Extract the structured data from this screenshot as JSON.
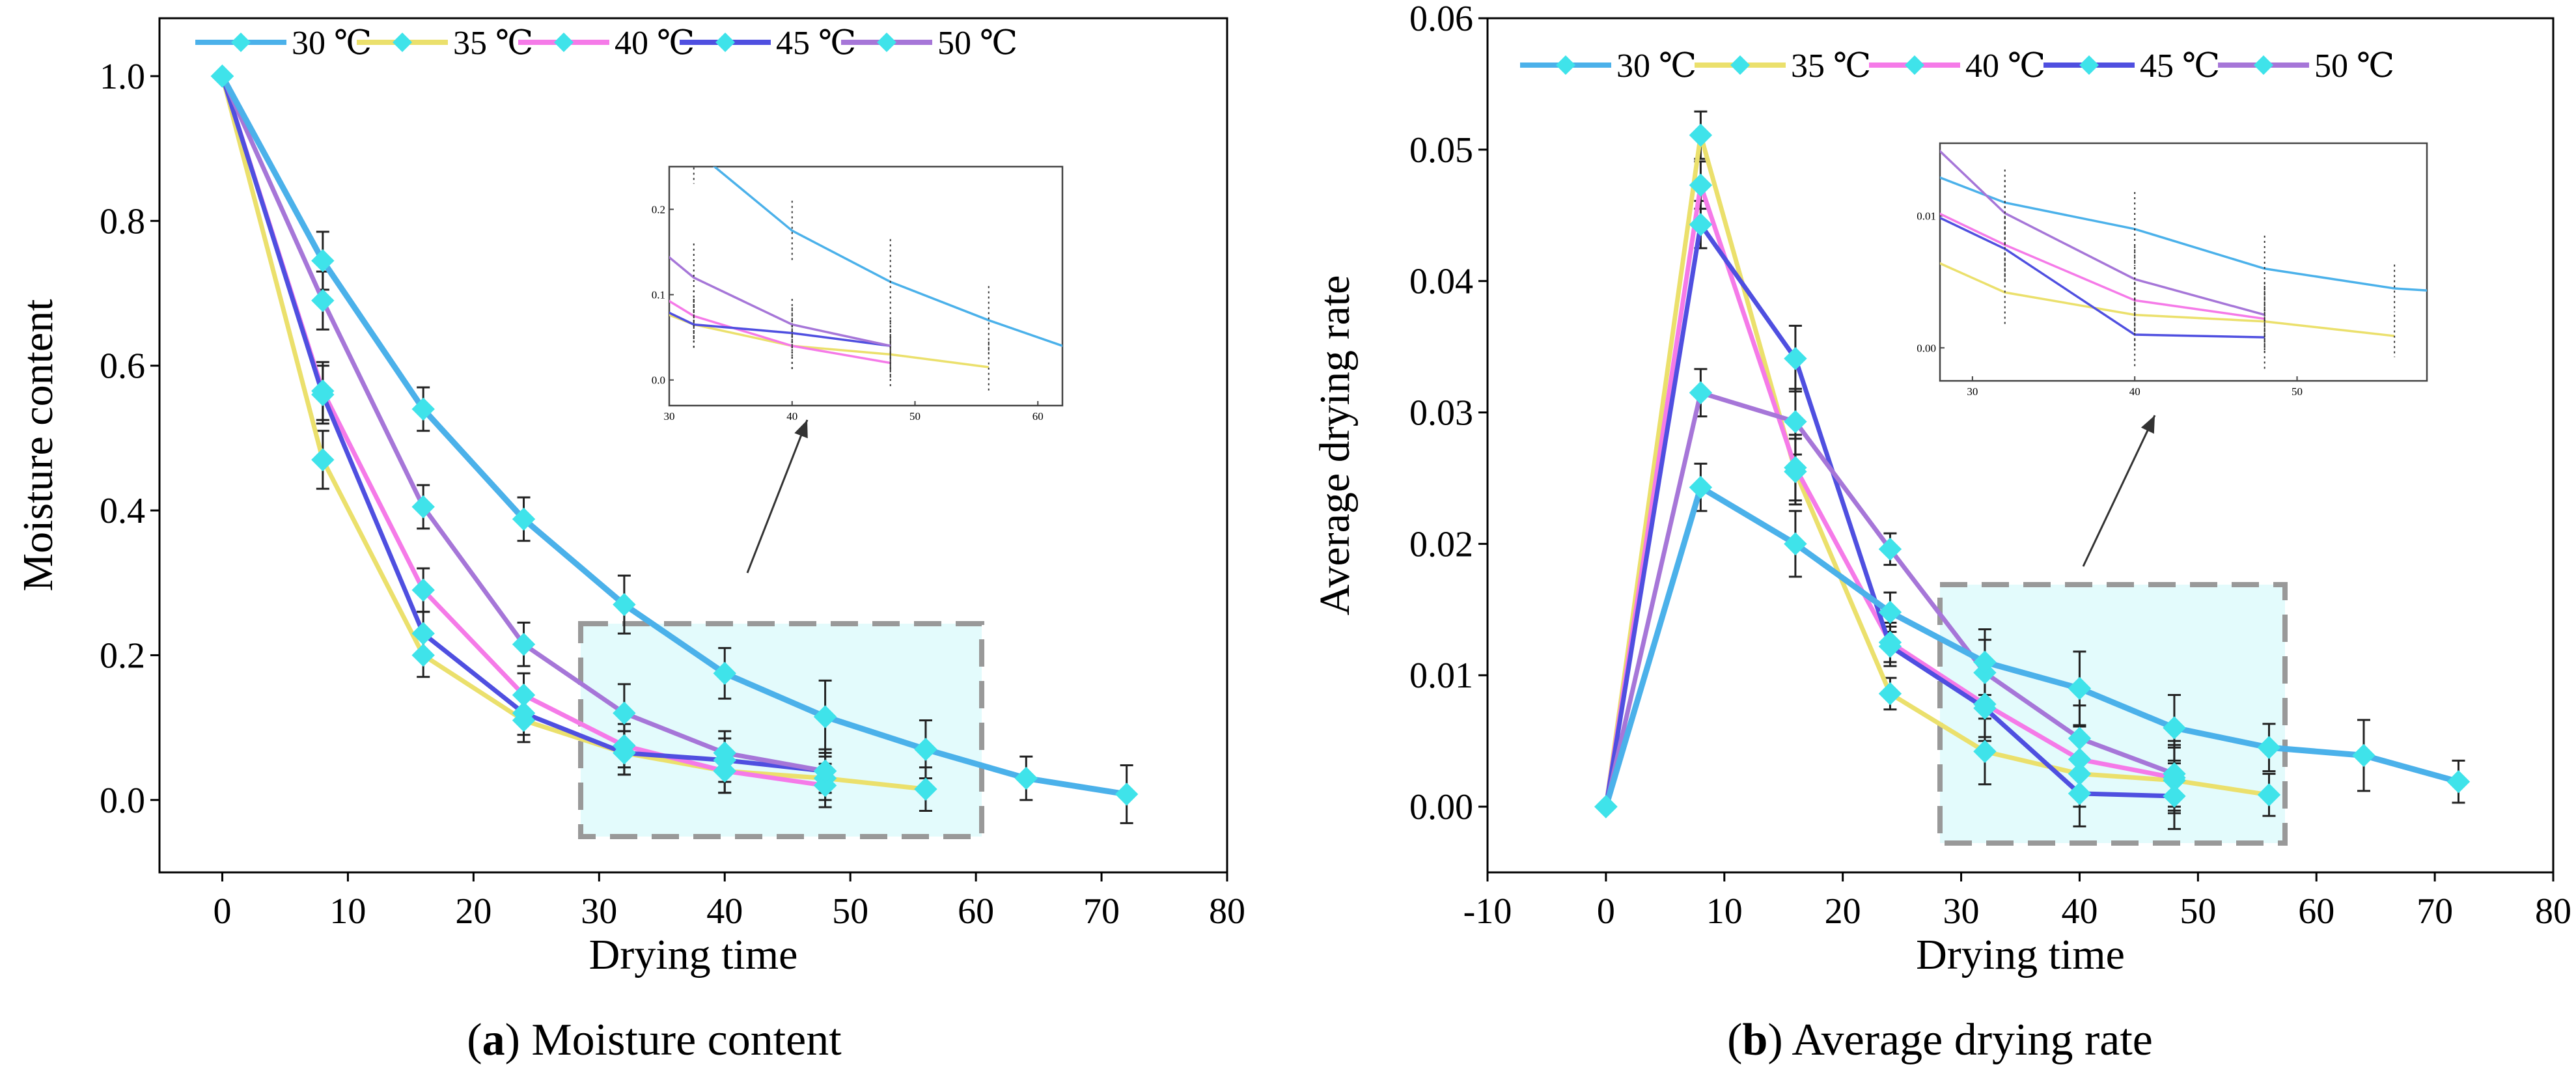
{
  "chart_data": [
    {
      "type": "line",
      "caption_letter": "a",
      "caption_text": ") Moisture content",
      "caption_prefix": "(",
      "xlabel": "Drying time",
      "ylabel": "Moisture content",
      "xlim": [
        -5,
        80
      ],
      "ylim": [
        -0.1,
        1.08
      ],
      "xticks": [
        "0",
        "10",
        "20",
        "30",
        "40",
        "50",
        "60",
        "70",
        "80"
      ],
      "yticks": [
        "0.0",
        "0.2",
        "0.4",
        "0.6",
        "0.8",
        "1.0"
      ],
      "series": [
        {
          "name": "30 ℃",
          "color": "#4bb1ea",
          "x": [
            0,
            8,
            16,
            24,
            32,
            40,
            48,
            56,
            64,
            72
          ],
          "y": [
            1.0,
            0.745,
            0.54,
            0.388,
            0.27,
            0.175,
            0.115,
            0.07,
            0.03,
            0.008
          ],
          "err": [
            0,
            0.04,
            0.03,
            0.03,
            0.04,
            0.035,
            0.05,
            0.04,
            0.03,
            0.04
          ]
        },
        {
          "name": "35 ℃",
          "color": "#ebe06c",
          "x": [
            0,
            8,
            16,
            24,
            32,
            40,
            48,
            56
          ],
          "y": [
            1.0,
            0.47,
            0.2,
            0.11,
            0.065,
            0.04,
            0.03,
            0.015
          ],
          "err": [
            0,
            0.04,
            0.03,
            0.03,
            0.03,
            0.03,
            0.03,
            0.03
          ]
        },
        {
          "name": "40 ℃",
          "color": "#f57ae8",
          "x": [
            0,
            8,
            16,
            24,
            32,
            40,
            48
          ],
          "y": [
            1.0,
            0.565,
            0.29,
            0.145,
            0.075,
            0.04,
            0.02
          ],
          "err": [
            0,
            0.04,
            0.03,
            0.03,
            0.03,
            0.03,
            0.03
          ]
        },
        {
          "name": "45 ℃",
          "color": "#4f4fe0",
          "x": [
            0,
            8,
            16,
            24,
            32,
            40,
            48
          ],
          "y": [
            1.0,
            0.56,
            0.23,
            0.12,
            0.065,
            0.055,
            0.04
          ],
          "err": [
            0,
            0.04,
            0.03,
            0.03,
            0.03,
            0.03,
            0.03
          ]
        },
        {
          "name": "50 ℃",
          "color": "#a676d8",
          "x": [
            0,
            8,
            16,
            24,
            32,
            40,
            48
          ],
          "y": [
            1.0,
            0.69,
            0.405,
            0.215,
            0.12,
            0.065,
            0.04
          ],
          "err": [
            0,
            0.04,
            0.03,
            0.03,
            0.04,
            0.03,
            0.03
          ]
        }
      ],
      "inset": {
        "xlim": [
          30,
          62
        ],
        "ylim": [
          -0.03,
          0.25
        ],
        "xticks": [
          "30",
          "40",
          "50",
          "60"
        ],
        "yticks": [
          "0.0",
          "0.1",
          "0.2"
        ]
      }
    },
    {
      "type": "line",
      "caption_letter": "b",
      "caption_text": ") Average drying rate",
      "caption_prefix": "(",
      "xlabel": "Drying time",
      "ylabel": "Average drying rate",
      "xlim": [
        -10,
        80
      ],
      "ylim": [
        -0.005,
        0.06
      ],
      "xticks": [
        "-10",
        "0",
        "10",
        "20",
        "30",
        "40",
        "50",
        "60",
        "70",
        "80"
      ],
      "yticks": [
        "0.00",
        "0.01",
        "0.02",
        "0.03",
        "0.04",
        "0.05",
        "0.06"
      ],
      "series": [
        {
          "name": "30 ℃",
          "color": "#4bb1ea",
          "x": [
            0,
            8,
            16,
            24,
            32,
            40,
            48,
            56,
            64,
            72
          ],
          "y": [
            0,
            0.0243,
            0.02,
            0.0148,
            0.011,
            0.009,
            0.006,
            0.0045,
            0.0039,
            0.0019
          ],
          "err": [
            0,
            0.0018,
            0.0025,
            0.0015,
            0.0025,
            0.0028,
            0.0025,
            0.0018,
            0.0027,
            0.0016
          ]
        },
        {
          "name": "35 ℃",
          "color": "#ebe06c",
          "x": [
            0,
            8,
            16,
            24,
            32,
            40,
            48,
            56
          ],
          "y": [
            0,
            0.0511,
            0.0255,
            0.0086,
            0.0042,
            0.0025,
            0.002,
            0.0009
          ],
          "err": [
            0,
            0.0018,
            0.0025,
            0.0012,
            0.0025,
            0.0025,
            0.0025,
            0.0016
          ]
        },
        {
          "name": "40 ℃",
          "color": "#f57ae8",
          "x": [
            0,
            8,
            16,
            24,
            32,
            40,
            48
          ],
          "y": [
            0,
            0.0473,
            0.0258,
            0.0125,
            0.0078,
            0.0036,
            0.0022
          ],
          "err": [
            0,
            0.0018,
            0.0025,
            0.0015,
            0.0025,
            0.0025,
            0.0025
          ]
        },
        {
          "name": "45 ℃",
          "color": "#4f4fe0",
          "x": [
            0,
            8,
            16,
            24,
            32,
            40,
            48
          ],
          "y": [
            0,
            0.0443,
            0.0341,
            0.0122,
            0.0075,
            0.001,
            0.0008
          ],
          "err": [
            0,
            0.0018,
            0.0025,
            0.0015,
            0.0025,
            0.0025,
            0.0025
          ]
        },
        {
          "name": "50 ℃",
          "color": "#a676d8",
          "x": [
            0,
            8,
            16,
            24,
            32,
            40,
            48
          ],
          "y": [
            0,
            0.0315,
            0.0293,
            0.0196,
            0.0102,
            0.0052,
            0.0025
          ],
          "err": [
            0,
            0.0018,
            0.0025,
            0.0012,
            0.0025,
            0.0025,
            0.0025
          ]
        }
      ],
      "inset": {
        "xlim": [
          28,
          58
        ],
        "ylim": [
          -0.0025,
          0.0155
        ],
        "xticks": [
          "30",
          "40",
          "50"
        ],
        "yticks": [
          "0.00",
          "0.01"
        ]
      }
    }
  ]
}
